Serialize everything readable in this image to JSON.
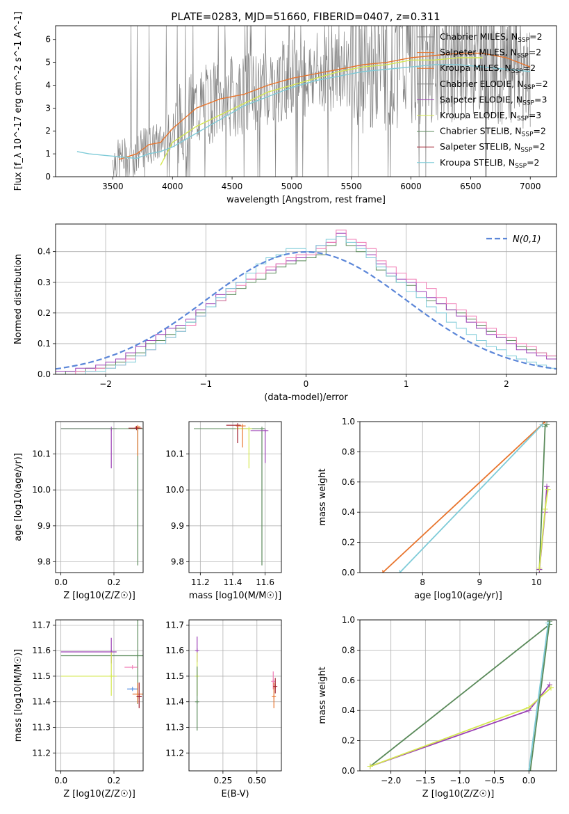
{
  "figure_title": "PLATE=0283, MJD=51660, FIBERID=0407, z=0.311",
  "colors": {
    "chabrier_miles": "#808080",
    "salpeter_miles": "#e8742c",
    "kroupa_miles": "#e8742c",
    "chabrier_elodie": "#808080",
    "salpeter_elodie": "#9b3fb5",
    "kroupa_elodie": "#d4e84f",
    "chabrier_stelib": "#5a8a5a",
    "salpeter_stelib": "#a01c2c",
    "kroupa_stelib": "#7ecbd8",
    "normal_curve": "#5b86d8",
    "pink": "#f07bb4",
    "blue": "#4f8be0"
  },
  "chart_data": [
    {
      "type": "line",
      "panel": "spectrum",
      "xlabel": "wavelength [Angstrom, rest frame]",
      "ylabel": "Flux [f_λ 10^-17 erg cm^-2 s^-1 A^-1]",
      "xlim": [
        3020,
        7220
      ],
      "ylim": [
        0,
        6.6
      ],
      "xticks": [
        "3500",
        "4000",
        "4500",
        "5000",
        "5500",
        "6000",
        "6500",
        "7000"
      ],
      "yticks": [
        "0",
        "1",
        "2",
        "3",
        "4",
        "5",
        "6"
      ],
      "legend": [
        {
          "label": "Chabrier MILES, N_SSP=2",
          "color_key": "chabrier_miles"
        },
        {
          "label": "Salpeter MILES, N_SSP=2",
          "color_key": "salpeter_miles"
        },
        {
          "label": "Kroupa MILES, N_SSP=2",
          "color_key": "kroupa_miles"
        },
        {
          "label": "Chabrier ELODIE, N_SSP=2",
          "color_key": "chabrier_elodie"
        },
        {
          "label": "Salpeter ELODIE, N_SSP=3",
          "color_key": "salpeter_elodie"
        },
        {
          "label": "Kroupa ELODIE, N_SSP=3",
          "color_key": "kroupa_elodie"
        },
        {
          "label": "Chabrier STELIB, N_SSP=2",
          "color_key": "chabrier_stelib"
        },
        {
          "label": "Salpeter STELIB, N_SSP=2",
          "color_key": "salpeter_stelib"
        },
        {
          "label": "Kroupa STELIB, N_SSP=2",
          "color_key": "kroupa_stelib"
        }
      ],
      "series": [
        {
          "color_key": "salpeter_miles",
          "x": [
            3550,
            3700,
            3800,
            3900,
            4000,
            4200,
            4400,
            4600,
            4800,
            5000,
            5200,
            5400,
            5600,
            5800,
            6000,
            6200,
            6400,
            6600,
            6800,
            7000
          ],
          "y": [
            0.75,
            1.0,
            1.4,
            1.5,
            2.1,
            3.0,
            3.4,
            3.6,
            4.0,
            4.3,
            4.5,
            4.7,
            4.9,
            5.0,
            5.2,
            5.3,
            5.4,
            5.4,
            5.2,
            4.8
          ]
        },
        {
          "color_key": "kroupa_elodie",
          "x": [
            3900,
            4000,
            4200,
            4400,
            4600,
            4800,
            5000,
            5200,
            5400,
            5600,
            5800,
            6000,
            6200,
            6400,
            6600
          ],
          "y": [
            0.5,
            1.5,
            2.2,
            2.7,
            3.2,
            3.7,
            4.0,
            4.3,
            4.6,
            4.8,
            4.9,
            5.1,
            5.1,
            5.2,
            5.2
          ]
        },
        {
          "color_key": "kroupa_stelib",
          "x": [
            3200,
            3300,
            3400,
            3500,
            3600,
            3700,
            3800,
            3900,
            4000,
            4200,
            4400,
            4600,
            4800,
            5000,
            5200,
            5400,
            5600,
            5800,
            6000,
            6200,
            6400,
            6600,
            6800,
            7000
          ],
          "y": [
            1.1,
            1.0,
            0.95,
            0.9,
            0.85,
            0.8,
            1.0,
            1.1,
            1.3,
            1.9,
            2.5,
            3.1,
            3.5,
            3.9,
            4.2,
            4.4,
            4.6,
            4.7,
            4.8,
            4.9,
            4.9,
            4.8,
            4.7,
            4.6
          ]
        }
      ]
    },
    {
      "type": "bar",
      "panel": "residual_histogram",
      "xlabel": "(data-model)/error",
      "ylabel": "Normed distribution",
      "xlim": [
        -2.5,
        2.5
      ],
      "ylim": [
        0,
        0.49
      ],
      "xticks": [
        "−2",
        "−1",
        "0",
        "1",
        "2"
      ],
      "yticks": [
        "0.0",
        "0.1",
        "0.2",
        "0.3",
        "0.4"
      ],
      "legend": [
        {
          "label": "N(0,1)",
          "color_key": "normal_curve"
        }
      ],
      "bin_edges": [
        -2.5,
        -2.4,
        -2.3,
        -2.2,
        -2.1,
        -2.0,
        -1.9,
        -1.8,
        -1.7,
        -1.6,
        -1.5,
        -1.4,
        -1.3,
        -1.2,
        -1.1,
        -1.0,
        -0.9,
        -0.8,
        -0.7,
        -0.6,
        -0.5,
        -0.4,
        -0.3,
        -0.2,
        -0.1,
        0.0,
        0.1,
        0.2,
        0.3,
        0.4,
        0.5,
        0.6,
        0.7,
        0.8,
        0.9,
        1.0,
        1.1,
        1.2,
        1.3,
        1.4,
        1.5,
        1.6,
        1.7,
        1.8,
        1.9,
        2.0,
        2.1,
        2.2,
        2.3,
        2.4,
        2.5
      ],
      "series": [
        {
          "color_key": "chabrier_stelib",
          "values": [
            0.0,
            0.01,
            0.01,
            0.02,
            0.02,
            0.03,
            0.04,
            0.06,
            0.07,
            0.1,
            0.11,
            0.13,
            0.15,
            0.17,
            0.2,
            0.22,
            0.24,
            0.26,
            0.28,
            0.3,
            0.31,
            0.33,
            0.35,
            0.36,
            0.37,
            0.38,
            0.39,
            0.42,
            0.45,
            0.42,
            0.4,
            0.38,
            0.34,
            0.32,
            0.3,
            0.29,
            0.27,
            0.24,
            0.23,
            0.21,
            0.2,
            0.18,
            0.16,
            0.14,
            0.12,
            0.11,
            0.09,
            0.08,
            0.07,
            0.06
          ]
        },
        {
          "color_key": "salpeter_elodie",
          "values": [
            0.01,
            0.01,
            0.02,
            0.02,
            0.03,
            0.04,
            0.05,
            0.07,
            0.09,
            0.11,
            0.13,
            0.15,
            0.16,
            0.18,
            0.21,
            0.23,
            0.26,
            0.28,
            0.3,
            0.31,
            0.33,
            0.34,
            0.36,
            0.37,
            0.38,
            0.4,
            0.42,
            0.43,
            0.46,
            0.44,
            0.42,
            0.39,
            0.36,
            0.33,
            0.31,
            0.3,
            0.27,
            0.25,
            0.23,
            0.21,
            0.19,
            0.17,
            0.15,
            0.13,
            0.12,
            0.1,
            0.08,
            0.07,
            0.06,
            0.05
          ]
        },
        {
          "color_key": "pink",
          "values": [
            0.0,
            0.0,
            0.01,
            0.01,
            0.02,
            0.02,
            0.03,
            0.05,
            0.06,
            0.08,
            0.1,
            0.12,
            0.14,
            0.16,
            0.19,
            0.22,
            0.24,
            0.27,
            0.29,
            0.31,
            0.33,
            0.35,
            0.36,
            0.38,
            0.39,
            0.39,
            0.41,
            0.43,
            0.47,
            0.44,
            0.43,
            0.41,
            0.37,
            0.35,
            0.33,
            0.31,
            0.3,
            0.28,
            0.25,
            0.23,
            0.21,
            0.19,
            0.17,
            0.15,
            0.13,
            0.12,
            0.1,
            0.09,
            0.07,
            0.06
          ]
        },
        {
          "color_key": "kroupa_stelib",
          "values": [
            0.0,
            0.0,
            0.0,
            0.01,
            0.01,
            0.02,
            0.03,
            0.04,
            0.06,
            0.08,
            0.1,
            0.12,
            0.14,
            0.17,
            0.19,
            0.22,
            0.25,
            0.28,
            0.3,
            0.33,
            0.36,
            0.38,
            0.39,
            0.41,
            0.41,
            0.4,
            0.42,
            0.44,
            0.45,
            0.43,
            0.41,
            0.38,
            0.35,
            0.32,
            0.3,
            0.27,
            0.25,
            0.22,
            0.2,
            0.17,
            0.15,
            0.13,
            0.11,
            0.09,
            0.08,
            0.06,
            0.05,
            0.04,
            0.03,
            0.02
          ]
        }
      ]
    },
    {
      "type": "scatter",
      "panel": "age_vs_Z",
      "xlabel": "Z [log10(Z/Z☉)]",
      "ylabel": "age [log10(age/yr)]",
      "xlim": [
        -0.02,
        0.31
      ],
      "ylim": [
        9.77,
        10.19
      ],
      "xticks": [
        "0.0",
        "0.2"
      ],
      "yticks": [
        "9.8",
        "9.9",
        "10.0",
        "10.1"
      ],
      "points": [
        {
          "x": 0.19,
          "y": 10.17,
          "xerr": 0.19,
          "yerr_low": 0.11,
          "color_key": "salpeter_elodie"
        },
        {
          "x": 0.29,
          "y": 10.17,
          "xerr": 0.29,
          "yerr_low": 0.38,
          "color_key": "chabrier_stelib"
        },
        {
          "x": 0.29,
          "y": 10.175,
          "xerr": 0.01,
          "yerr_low": 0.08,
          "color_key": "salpeter_miles"
        },
        {
          "x": 0.285,
          "y": 10.172,
          "xerr": 0.03,
          "yerr_low": 0.0,
          "color_key": "salpeter_stelib"
        }
      ]
    },
    {
      "type": "scatter",
      "panel": "age_vs_mass",
      "xlabel": "mass [log10(M/M☉)]",
      "ylabel": "",
      "xlim": [
        11.13,
        11.7
      ],
      "ylim": [
        9.77,
        10.19
      ],
      "xticks": [
        "11.2",
        "11.4",
        "11.6"
      ],
      "yticks": [
        "9.8",
        "9.9",
        "10.0",
        "10.1"
      ],
      "points": [
        {
          "x": 11.58,
          "y": 10.17,
          "xerr": 0.42,
          "yerr_low": 0.38,
          "color_key": "chabrier_stelib"
        },
        {
          "x": 11.6,
          "y": 10.165,
          "xerr": 0.09,
          "yerr_low": 0.09,
          "color_key": "salpeter_elodie"
        },
        {
          "x": 11.5,
          "y": 10.17,
          "xerr": 0.08,
          "yerr_low": 0.11,
          "color_key": "kroupa_elodie"
        },
        {
          "x": 11.43,
          "y": 10.18,
          "xerr": 0.07,
          "yerr_low": 0.05,
          "color_key": "salpeter_stelib"
        },
        {
          "x": 11.46,
          "y": 10.178,
          "xerr": 0.04,
          "yerr_low": 0.06,
          "color_key": "salpeter_miles"
        }
      ]
    },
    {
      "type": "line",
      "panel": "mass_weight_vs_age",
      "xlabel": "age [log10(age/yr)]",
      "ylabel": "mass weight",
      "xlim": [
        6.9,
        10.35
      ],
      "ylim": [
        0,
        1.0
      ],
      "xticks": [
        "8",
        "9",
        "10"
      ],
      "yticks": [
        "0.0",
        "0.2",
        "0.4",
        "0.6",
        "0.8",
        "1.0"
      ],
      "series": [
        {
          "color_key": "salpeter_miles",
          "x": [
            7.3,
            10.15
          ],
          "y": [
            0.0,
            1.0
          ]
        },
        {
          "color_key": "kroupa_stelib",
          "x": [
            7.6,
            10.1
          ],
          "y": [
            0.0,
            0.98
          ]
        },
        {
          "color_key": "chabrier_stelib",
          "x": [
            10.05,
            10.15,
            10.18
          ],
          "y": [
            0.02,
            0.97,
            0.98
          ]
        },
        {
          "color_key": "salpeter_elodie",
          "x": [
            10.05,
            10.15,
            10.18
          ],
          "y": [
            0.02,
            0.4,
            0.57
          ]
        },
        {
          "color_key": "kroupa_elodie",
          "x": [
            10.05,
            10.15,
            10.2
          ],
          "y": [
            0.03,
            0.42,
            0.55
          ]
        }
      ]
    },
    {
      "type": "scatter",
      "panel": "mass_vs_Z",
      "xlabel": "Z [log10(Z/Z☉)]",
      "ylabel": "mass [log10(M/M☉)]",
      "xlim": [
        -0.02,
        0.31
      ],
      "ylim": [
        11.13,
        11.72
      ],
      "xticks": [
        "0.0",
        "0.2"
      ],
      "yticks": [
        "11.2",
        "11.3",
        "11.4",
        "11.5",
        "11.6",
        "11.7"
      ],
      "points": [
        {
          "x": 0.19,
          "y": 11.595,
          "xerr": 0.19,
          "yerr": 0.1,
          "color_key": "salpeter_elodie"
        },
        {
          "x": 0.29,
          "y": 11.58,
          "xerr": 0.29,
          "yerr": 0.42,
          "color_key": "chabrier_stelib"
        },
        {
          "x": 0.19,
          "y": 11.5,
          "xerr": 0.19,
          "yerr": 0.17,
          "color_key": "kroupa_elodie"
        },
        {
          "x": 0.27,
          "y": 11.535,
          "xerr": 0.03,
          "yerr": 0.0,
          "color_key": "pink"
        },
        {
          "x": 0.27,
          "y": 11.45,
          "xerr": 0.02,
          "yerr": 0.0,
          "color_key": "blue"
        },
        {
          "x": 0.29,
          "y": 11.43,
          "xerr": 0.02,
          "yerr": 0.08,
          "color_key": "salpeter_miles"
        },
        {
          "x": 0.295,
          "y": 11.42,
          "xerr": 0.01,
          "yerr": 0.1,
          "color_key": "salpeter_stelib"
        }
      ]
    },
    {
      "type": "scatter",
      "panel": "mass_vs_EBV",
      "xlabel": "E(B-V)",
      "ylabel": "",
      "xlim": [
        0.0,
        0.68
      ],
      "ylim": [
        11.13,
        11.72
      ],
      "xticks": [
        "0.25",
        "0.50"
      ],
      "yticks": [
        "11.2",
        "11.3",
        "11.4",
        "11.5",
        "11.6",
        "11.7"
      ],
      "points": [
        {
          "x": 0.06,
          "y": 11.6,
          "yerr": 0.1,
          "color_key": "salpeter_elodie"
        },
        {
          "x": 0.06,
          "y": 11.5,
          "yerr": 0.17,
          "color_key": "kroupa_elodie"
        },
        {
          "x": 0.06,
          "y": 11.4,
          "yerr": 0.25,
          "color_key": "chabrier_stelib"
        },
        {
          "x": 0.62,
          "y": 11.48,
          "yerr": 0.07,
          "color_key": "pink"
        },
        {
          "x": 0.625,
          "y": 11.42,
          "yerr": 0.1,
          "color_key": "salpeter_miles"
        },
        {
          "x": 0.635,
          "y": 11.46,
          "yerr": 0.06,
          "color_key": "salpeter_stelib"
        }
      ]
    },
    {
      "type": "line",
      "panel": "mass_weight_vs_Z",
      "xlabel": "Z [log10(Z/Z☉)]",
      "ylabel": "mass weight",
      "xlim": [
        -2.45,
        0.4
      ],
      "ylim": [
        0,
        1.0
      ],
      "xticks": [
        "−2.0",
        "−1.5",
        "−1.0",
        "−0.5",
        "0.0",
        "0.5"
      ],
      "yticks": [
        "0.0",
        "0.2",
        "0.4",
        "0.6",
        "0.8",
        "1.0"
      ],
      "series": [
        {
          "color_key": "chabrier_stelib",
          "x": [
            -2.3,
            0.3
          ],
          "y": [
            0.03,
            0.97
          ]
        },
        {
          "color_key": "salpeter_elodie",
          "x": [
            -2.3,
            0.0,
            0.3
          ],
          "y": [
            0.03,
            0.4,
            0.57
          ]
        },
        {
          "color_key": "kroupa_elodie",
          "x": [
            -2.3,
            0.0,
            0.32
          ],
          "y": [
            0.03,
            0.42,
            0.55
          ]
        },
        {
          "color_key": "kroupa_stelib",
          "x": [
            0.0,
            0.28
          ],
          "y": [
            0.0,
            0.98
          ]
        },
        {
          "color_key": "chabrier_stelib",
          "x": [
            0.02,
            0.3
          ],
          "y": [
            0.0,
            0.99
          ]
        }
      ]
    }
  ]
}
